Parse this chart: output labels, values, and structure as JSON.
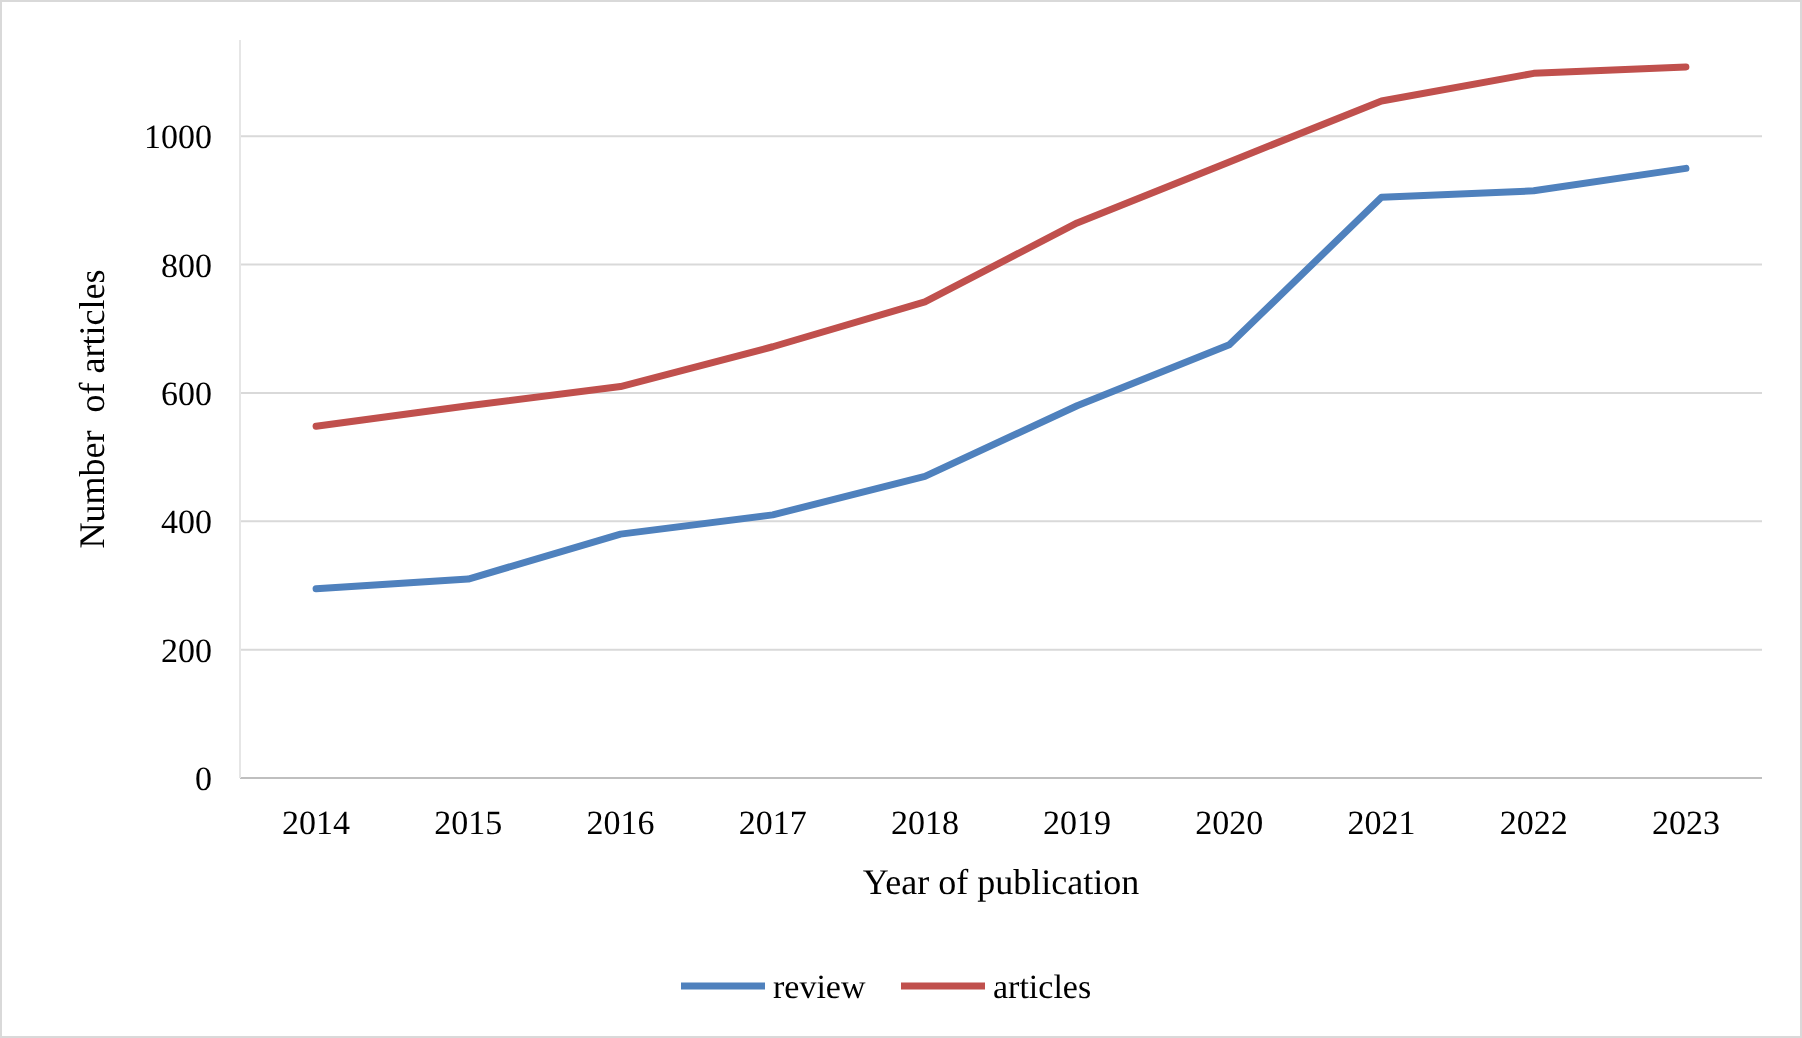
{
  "chart_data": {
    "type": "line",
    "xlabel": "Year of publication",
    "ylabel": "Number  of articles",
    "categories": [
      "2014",
      "2015",
      "2016",
      "2017",
      "2018",
      "2019",
      "2020",
      "2021",
      "2022",
      "2023"
    ],
    "series": [
      {
        "name": "review",
        "color": "#4f81bd",
        "values": [
          295,
          310,
          380,
          410,
          470,
          580,
          675,
          905,
          915,
          950
        ]
      },
      {
        "name": "articles",
        "color": "#c0504d",
        "values": [
          548,
          580,
          610,
          672,
          742,
          865,
          960,
          1055,
          1098,
          1108
        ]
      }
    ],
    "ylim": [
      0,
      1150
    ],
    "yticks": [
      0,
      200,
      400,
      600,
      800,
      1000
    ],
    "grid": "y",
    "legend": "bottom",
    "marker": "none",
    "line_style": "solid"
  }
}
